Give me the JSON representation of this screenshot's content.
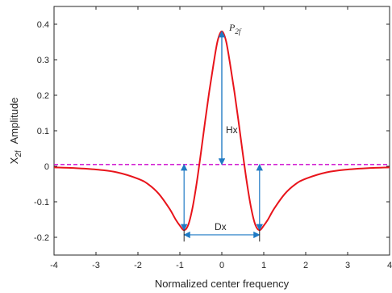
{
  "chart_data": {
    "type": "line",
    "xlabel": "Normalized center frequency",
    "ylabel_main": "X",
    "ylabel_sub": "2f",
    "ylabel_rest": "Amplitude",
    "xlim": [
      -4,
      4
    ],
    "ylim": [
      -0.25,
      0.45
    ],
    "xticks": [
      -4,
      -3,
      -2,
      -1,
      0,
      1,
      2,
      3,
      4
    ],
    "xtick_labels": [
      "-4",
      "-3",
      "-2",
      "-1",
      "0",
      "1",
      "2",
      "3",
      "4"
    ],
    "yticks": [
      -0.2,
      -0.1,
      0,
      0.1,
      0.2,
      0.3,
      0.4
    ],
    "ytick_labels": [
      "-0.2",
      "-0.1",
      "0",
      "0.1",
      "0.2",
      "0.3",
      "0.4"
    ],
    "grid": false,
    "series": [
      {
        "color": "#e8141b",
        "style": "solid",
        "peak": 0.38,
        "trough": -0.18,
        "trough_x": 0.9,
        "x": [
          -4,
          -3.5,
          -3,
          -2.5,
          -2,
          -1.75,
          -1.5,
          -1.25,
          -1.1,
          -1,
          -0.9,
          -0.8,
          -0.7,
          -0.6,
          -0.5,
          -0.4,
          -0.3,
          -0.2,
          -0.1,
          0,
          0.1,
          0.2,
          0.3,
          0.4,
          0.5,
          0.6,
          0.7,
          0.8,
          0.9,
          1,
          1.1,
          1.25,
          1.5,
          1.75,
          2,
          2.5,
          3,
          3.5,
          4
        ],
        "y": [
          -0.003,
          -0.005,
          -0.009,
          -0.017,
          -0.035,
          -0.051,
          -0.078,
          -0.119,
          -0.15,
          -0.167,
          -0.18,
          -0.165,
          -0.118,
          -0.048,
          0.036,
          0.125,
          0.21,
          0.286,
          0.353,
          0.38,
          0.353,
          0.286,
          0.21,
          0.125,
          0.036,
          -0.048,
          -0.118,
          -0.165,
          -0.18,
          -0.167,
          -0.15,
          -0.119,
          -0.078,
          -0.051,
          -0.035,
          -0.017,
          -0.009,
          -0.005,
          -0.003
        ]
      },
      {
        "color": "#cc00cc",
        "style": "dashed",
        "x": [
          -4,
          4
        ],
        "y": [
          0.005,
          0.005
        ]
      }
    ],
    "annotations": {
      "peak_label": "P",
      "peak_label_sub": "2f",
      "height_label": "Hx",
      "width_label": "Dx",
      "arrow_color": "#1f7ac4"
    }
  }
}
